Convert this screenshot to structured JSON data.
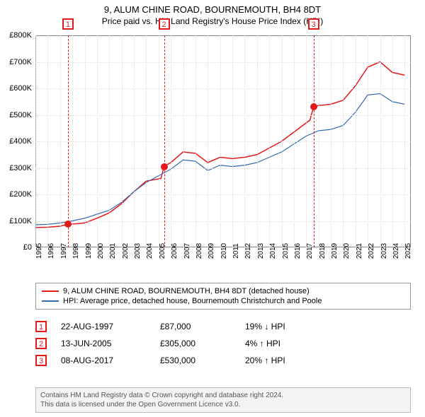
{
  "title": {
    "line1": "9, ALUM CHINE ROAD, BOURNEMOUTH, BH4 8DT",
    "line2": "Price paid vs. HM Land Registry's House Price Index (HPI)"
  },
  "chart": {
    "type": "line",
    "x_min": 1995,
    "x_max": 2025.5,
    "y_min": 0,
    "y_max": 800000,
    "background_color": "#ffffff",
    "border_color": "#888888",
    "grid_color": "#dddddd",
    "yticks": [
      {
        "v": 0,
        "label": "£0"
      },
      {
        "v": 100000,
        "label": "£100K"
      },
      {
        "v": 200000,
        "label": "£200K"
      },
      {
        "v": 300000,
        "label": "£300K"
      },
      {
        "v": 400000,
        "label": "£400K"
      },
      {
        "v": 500000,
        "label": "£500K"
      },
      {
        "v": 600000,
        "label": "£600K"
      },
      {
        "v": 700000,
        "label": "£700K"
      },
      {
        "v": 800000,
        "label": "£800K"
      }
    ],
    "xticks": [
      1995,
      1996,
      1997,
      1998,
      1999,
      2000,
      2001,
      2002,
      2003,
      2004,
      2005,
      2006,
      2007,
      2008,
      2009,
      2010,
      2011,
      2012,
      2013,
      2014,
      2015,
      2016,
      2017,
      2018,
      2019,
      2020,
      2021,
      2022,
      2023,
      2024,
      2025
    ],
    "series": [
      {
        "id": "price_paid",
        "color": "#e31a1c",
        "width": 1.5,
        "points": [
          [
            1995,
            75000
          ],
          [
            1996,
            76000
          ],
          [
            1997,
            80000
          ],
          [
            1997.64,
            87000
          ],
          [
            1998,
            88000
          ],
          [
            1999,
            92000
          ],
          [
            2000,
            110000
          ],
          [
            2001,
            130000
          ],
          [
            2002,
            165000
          ],
          [
            2003,
            210000
          ],
          [
            2004,
            250000
          ],
          [
            2005.2,
            260000
          ],
          [
            2005.45,
            305000
          ],
          [
            2006,
            320000
          ],
          [
            2007,
            360000
          ],
          [
            2008,
            355000
          ],
          [
            2009,
            320000
          ],
          [
            2010,
            340000
          ],
          [
            2011,
            335000
          ],
          [
            2012,
            340000
          ],
          [
            2013,
            350000
          ],
          [
            2014,
            375000
          ],
          [
            2015,
            400000
          ],
          [
            2016,
            435000
          ],
          [
            2017.3,
            480000
          ],
          [
            2017.6,
            530000
          ],
          [
            2018,
            535000
          ],
          [
            2019,
            540000
          ],
          [
            2020,
            555000
          ],
          [
            2021,
            610000
          ],
          [
            2022,
            680000
          ],
          [
            2023,
            700000
          ],
          [
            2024,
            660000
          ],
          [
            2025,
            650000
          ]
        ]
      },
      {
        "id": "hpi",
        "color": "#386cb0",
        "width": 1.2,
        "points": [
          [
            1995,
            85000
          ],
          [
            1996,
            87000
          ],
          [
            1997,
            92000
          ],
          [
            1998,
            100000
          ],
          [
            1999,
            110000
          ],
          [
            2000,
            125000
          ],
          [
            2001,
            140000
          ],
          [
            2002,
            170000
          ],
          [
            2003,
            210000
          ],
          [
            2004,
            245000
          ],
          [
            2005,
            270000
          ],
          [
            2006,
            295000
          ],
          [
            2007,
            330000
          ],
          [
            2008,
            325000
          ],
          [
            2009,
            290000
          ],
          [
            2010,
            310000
          ],
          [
            2011,
            305000
          ],
          [
            2012,
            310000
          ],
          [
            2013,
            320000
          ],
          [
            2014,
            340000
          ],
          [
            2015,
            360000
          ],
          [
            2016,
            390000
          ],
          [
            2017,
            420000
          ],
          [
            2018,
            440000
          ],
          [
            2019,
            445000
          ],
          [
            2020,
            460000
          ],
          [
            2021,
            510000
          ],
          [
            2022,
            575000
          ],
          [
            2023,
            580000
          ],
          [
            2024,
            550000
          ],
          [
            2025,
            540000
          ]
        ]
      }
    ],
    "sale_markers": [
      {
        "x": 1997.64,
        "y": 87000,
        "color": "#e31a1c"
      },
      {
        "x": 2005.45,
        "y": 305000,
        "color": "#e31a1c"
      },
      {
        "x": 2017.6,
        "y": 530000,
        "color": "#e31a1c"
      }
    ],
    "event_lines": [
      {
        "n": "1",
        "x": 1997.64,
        "color": "#e31a1c"
      },
      {
        "n": "2",
        "x": 2005.45,
        "color": "#e31a1c"
      },
      {
        "n": "3",
        "x": 2017.6,
        "color": "#e31a1c"
      }
    ]
  },
  "legend": {
    "items": [
      {
        "color": "#e31a1c",
        "label": "9, ALUM CHINE ROAD, BOURNEMOUTH, BH4 8DT (detached house)"
      },
      {
        "color": "#386cb0",
        "label": "HPI: Average price, detached house, Bournemouth Christchurch and Poole"
      }
    ]
  },
  "events": [
    {
      "n": "1",
      "color": "#e31a1c",
      "date": "22-AUG-1997",
      "price": "£87,000",
      "diff": "19% ↓ HPI"
    },
    {
      "n": "2",
      "color": "#e31a1c",
      "date": "13-JUN-2005",
      "price": "£305,000",
      "diff": "4% ↑ HPI"
    },
    {
      "n": "3",
      "color": "#e31a1c",
      "date": "08-AUG-2017",
      "price": "£530,000",
      "diff": "20% ↑ HPI"
    }
  ],
  "footer": {
    "line1": "Contains HM Land Registry data © Crown copyright and database right 2024.",
    "line2": "This data is licensed under the Open Government Licence v3.0."
  }
}
